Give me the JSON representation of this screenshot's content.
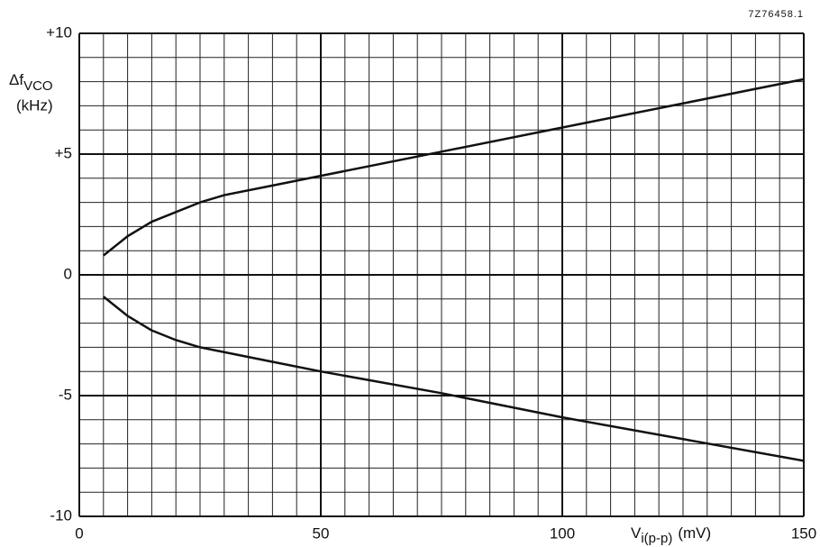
{
  "chart_data": {
    "type": "line",
    "annotation": "7Z76458.1",
    "ylabel": {
      "main": "Δf",
      "sub": "VCO",
      "unit": "(kHz)"
    },
    "xlabel": {
      "main": "V",
      "sub": "i(p-p)",
      "unit": "(mV)"
    },
    "x": [
      5,
      10,
      15,
      20,
      25,
      30,
      40,
      50,
      75,
      100,
      125,
      150
    ],
    "series": [
      {
        "color": "#111111",
        "values": [
          0.8,
          1.6,
          2.2,
          2.6,
          3.0,
          3.3,
          3.7,
          4.1,
          5.1,
          6.1,
          7.1,
          8.1
        ]
      },
      {
        "color": "#111111",
        "values": [
          -0.9,
          -1.7,
          -2.3,
          -2.7,
          -3.0,
          -3.2,
          -3.6,
          -4.0,
          -4.9,
          -5.9,
          -6.8,
          -7.7
        ]
      }
    ],
    "xlim": [
      0,
      150
    ],
    "ylim": [
      -10,
      10
    ],
    "xticks": [
      0,
      50,
      100,
      150
    ],
    "yticks": [
      -10,
      -5,
      0,
      {
        "value": 5,
        "label": "+5"
      },
      {
        "value": 10,
        "label": "+10"
      }
    ],
    "xgrid": [
      0,
      5,
      10,
      15,
      20,
      25,
      30,
      35,
      40,
      45,
      50,
      55,
      60,
      65,
      70,
      75,
      80,
      85,
      90,
      95,
      100,
      105,
      110,
      115,
      120,
      125,
      130,
      135,
      140,
      145,
      150
    ],
    "ygrid": [
      -10,
      -9,
      -8,
      -7,
      -6,
      -5,
      -4,
      -3,
      -2,
      -1,
      0,
      1,
      2,
      3,
      4,
      5,
      6,
      7,
      8,
      9,
      10
    ],
    "grid": true
  }
}
